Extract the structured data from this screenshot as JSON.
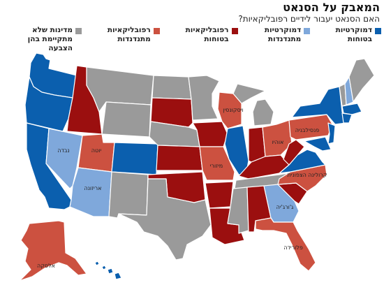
{
  "title": "המאבק על הסנאט",
  "subtitle": "האם הסנאט יעבור לידיים רפובליקאיות?",
  "colors": {
    "dem_safe": "#0b5fae",
    "dem_lean": "#7fa8db",
    "rep_safe": "#9b0f0f",
    "rep_lean": "#cc5140",
    "no_election": "#9a9a9a",
    "water": "#ffffff"
  },
  "legend": [
    {
      "label": "דמוקרטיות בטוחות",
      "color": "#0b5fae"
    },
    {
      "label": "דמוקרטיות מתנדנדות",
      "color": "#7fa8db"
    },
    {
      "label": "רפובליקאיות בטוחות",
      "color": "#9b0f0f"
    },
    {
      "label": "רפובליקאיות מתנדנדות",
      "color": "#cc5140"
    },
    {
      "label": "מדינות שלא מתקיימת בהן הצבעה",
      "color": "#9a9a9a"
    }
  ],
  "state_labels": {
    "nevada": "נבדה",
    "utah": "יוטה",
    "arizona": "אריזונה",
    "wisconsin": "ויסקונסין",
    "missouri": "מיזורי",
    "ohio": "אוהיו",
    "pennsylvania": "פנסילבניה",
    "north_carolina": "קרולינה הצפונית",
    "georgia": "ג'ורג'יה",
    "florida": "פלורידה",
    "alaska": "אלסקה"
  }
}
